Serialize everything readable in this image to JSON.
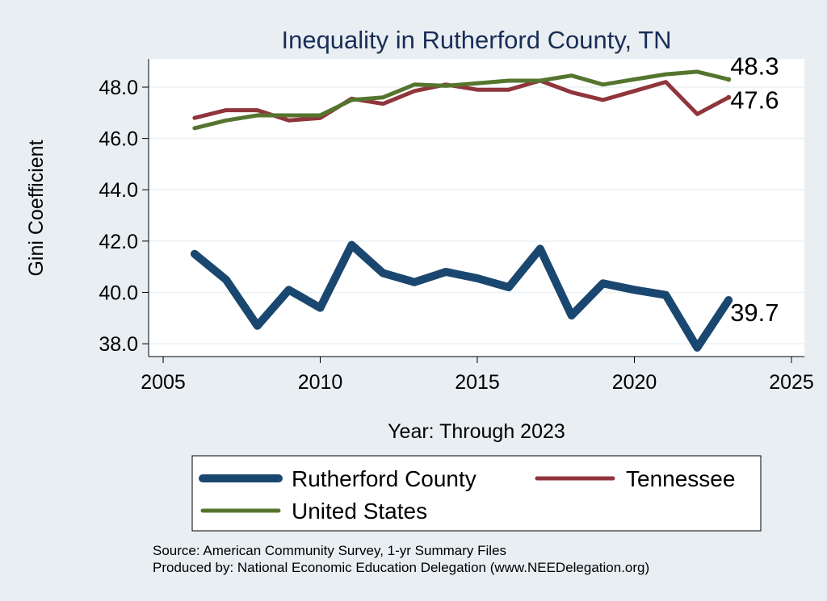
{
  "chart_data": {
    "type": "line",
    "title": "Inequality in Rutherford County, TN",
    "xlabel": "Year: Through 2023",
    "ylabel": "Gini Coefficient",
    "xlim": [
      2005,
      2025
    ],
    "ylim": [
      37.5,
      49.1
    ],
    "x_ticks": [
      "2005",
      "2010",
      "2015",
      "2020",
      "2025"
    ],
    "y_ticks": [
      "38.0",
      "40.0",
      "42.0",
      "44.0",
      "46.0",
      "48.0"
    ],
    "grid": true,
    "x": [
      2006,
      2007,
      2008,
      2009,
      2010,
      2011,
      2012,
      2013,
      2014,
      2015,
      2016,
      2017,
      2018,
      2019,
      2020,
      2021,
      2022,
      2023
    ],
    "series": [
      {
        "name": "Rutherford County",
        "color": "#1a476f",
        "values": [
          41.5,
          40.5,
          38.7,
          40.1,
          39.4,
          41.85,
          40.75,
          40.4,
          40.8,
          40.55,
          40.2,
          41.7,
          39.1,
          40.35,
          40.1,
          39.9,
          37.85,
          39.7
        ],
        "end_label": "39.7"
      },
      {
        "name": "Tennessee",
        "color": "#90353b",
        "values": [
          46.8,
          47.1,
          47.1,
          46.7,
          46.8,
          47.55,
          47.35,
          47.85,
          48.1,
          47.9,
          47.9,
          48.25,
          47.8,
          47.5,
          47.85,
          48.2,
          46.95,
          47.6
        ],
        "end_label": "47.6"
      },
      {
        "name": "United States",
        "color": "#55752f",
        "values": [
          46.4,
          46.7,
          46.9,
          46.9,
          46.9,
          47.5,
          47.6,
          48.1,
          48.05,
          48.15,
          48.25,
          48.25,
          48.45,
          48.1,
          48.3,
          48.5,
          48.6,
          48.3
        ],
        "end_label": "48.3"
      }
    ],
    "legend": {
      "placement": "bottom",
      "entries": [
        "Rutherford County",
        "Tennessee",
        "United States"
      ]
    }
  },
  "notes": {
    "source": "Source: American Community Survey, 1-yr Summary Files",
    "producer": "Produced by: National Economic Education Delegation (www.NEEDelegation.org)"
  }
}
